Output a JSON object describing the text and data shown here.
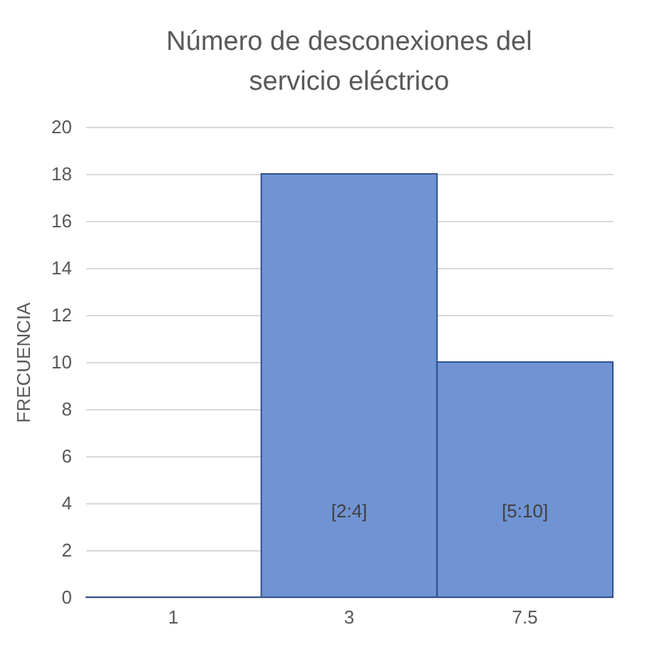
{
  "chart_data": {
    "type": "bar",
    "title": "Número  de desconexiones del servicio eléctrico",
    "ylabel": "FRECUENCIA",
    "categories": [
      "1",
      "3",
      "7.5"
    ],
    "values": [
      0,
      18,
      10
    ],
    "color": "#7094d3",
    "ylim": [
      0,
      20
    ],
    "yticks": [
      0,
      2,
      4,
      6,
      8,
      10,
      12,
      14,
      16,
      18,
      20
    ],
    "grid": "y",
    "annotations": [
      "[2:4]",
      "[5:10]"
    ]
  }
}
